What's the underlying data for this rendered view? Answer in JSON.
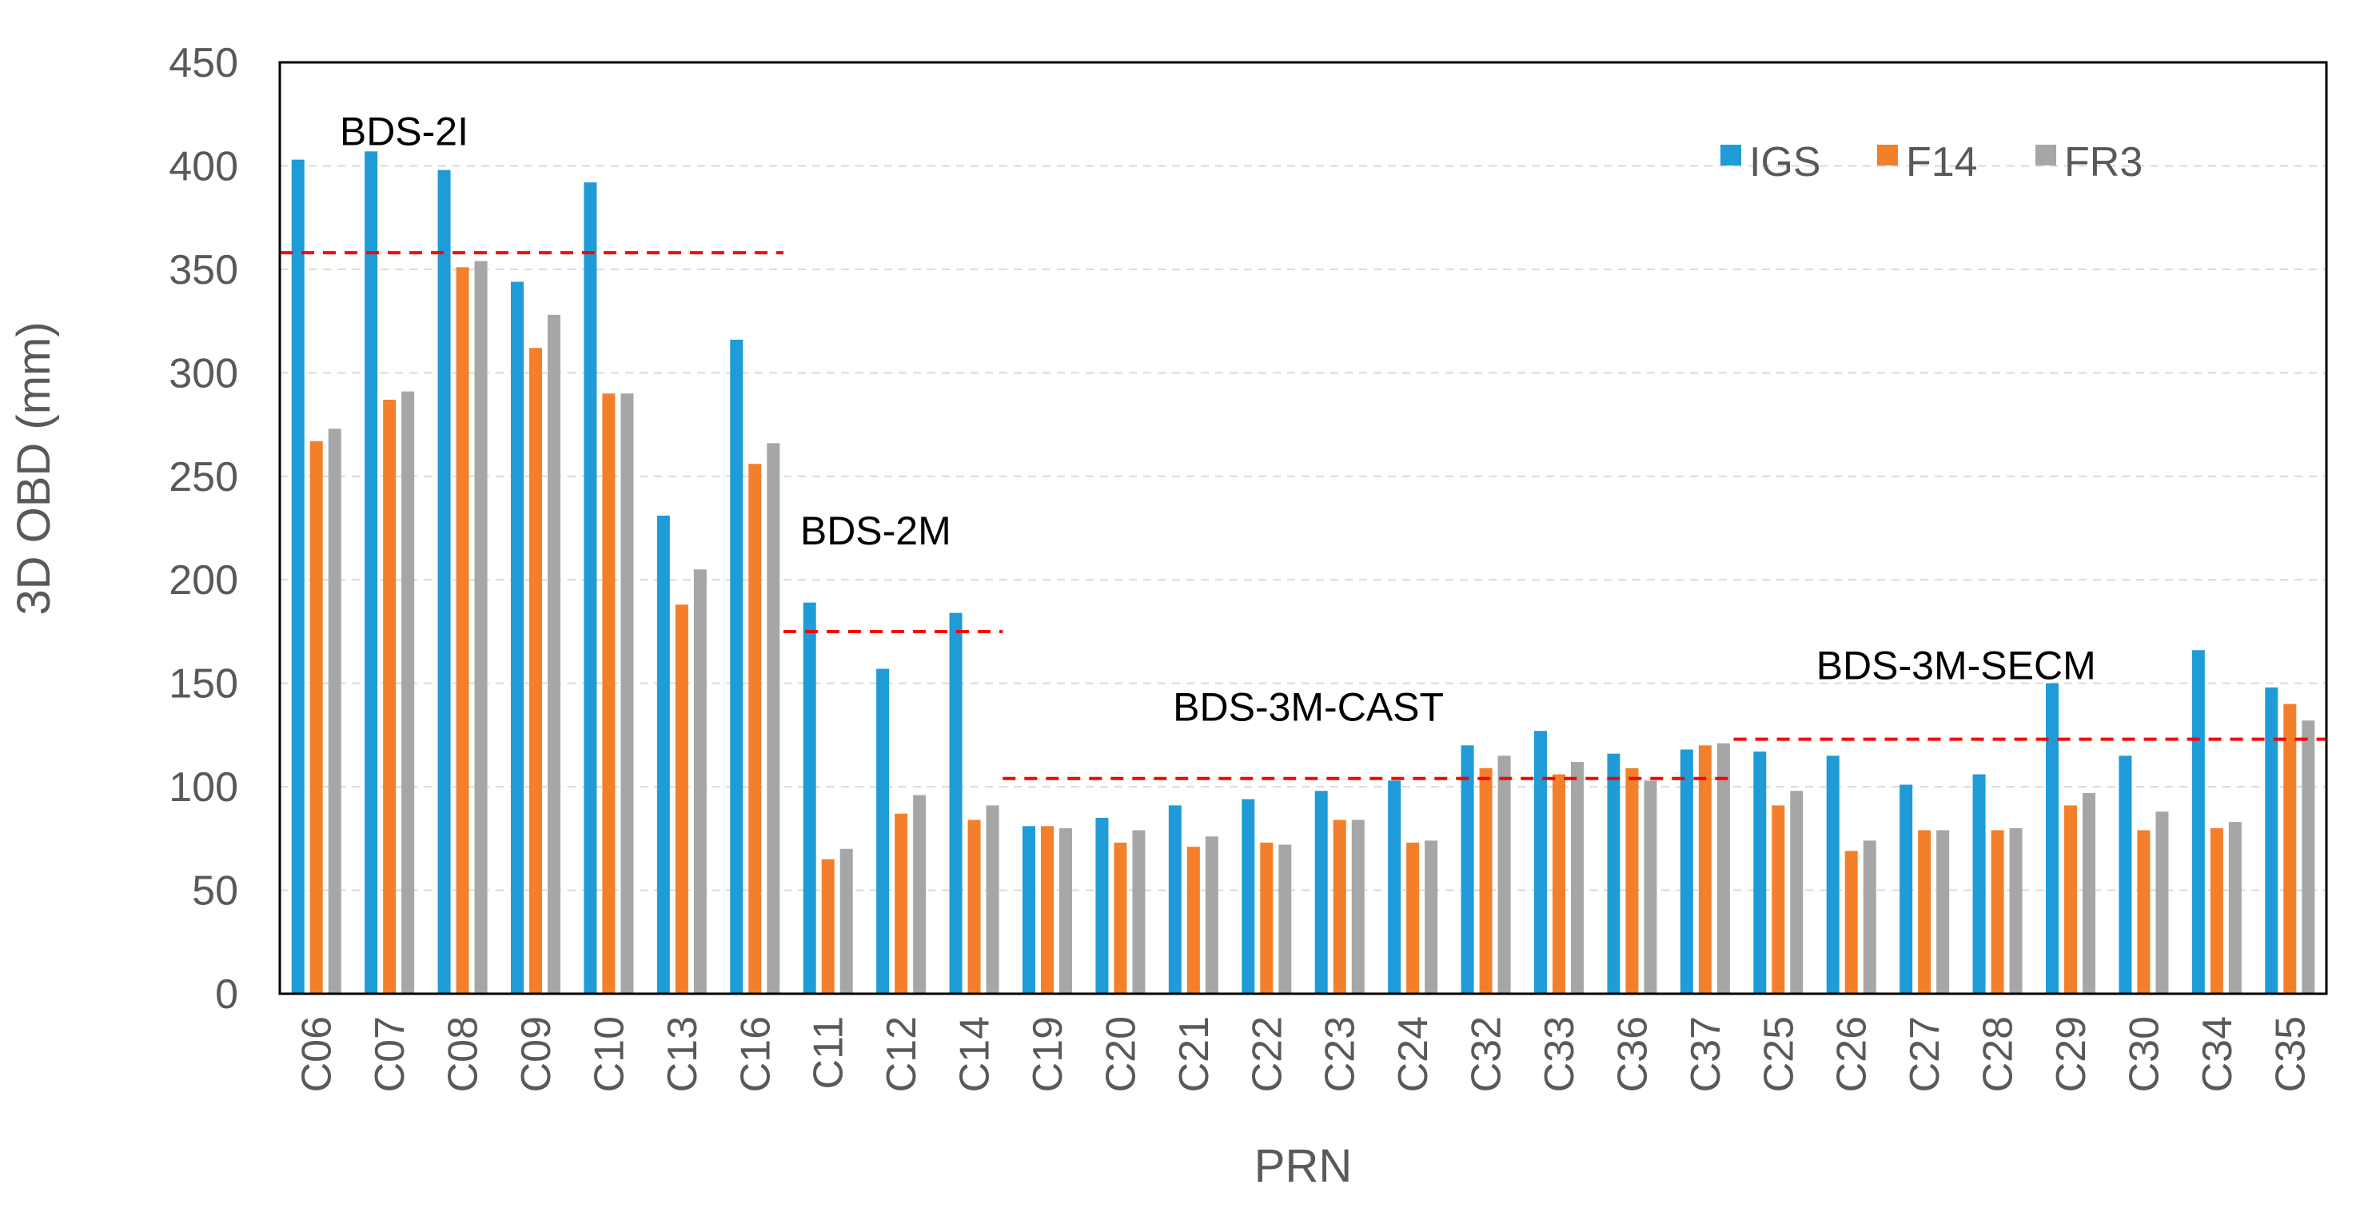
{
  "chart_data": {
    "type": "bar",
    "title": "",
    "xlabel": "PRN",
    "ylabel": "3D OBD (mm)",
    "ylim": [
      0,
      450
    ],
    "yticks": [
      0,
      50,
      100,
      150,
      200,
      250,
      300,
      350,
      400,
      450
    ],
    "grid": "horizontal dashed",
    "legend": "top-right",
    "categories": [
      "C06",
      "C07",
      "C08",
      "C09",
      "C10",
      "C13",
      "C16",
      "C11",
      "C12",
      "C14",
      "C19",
      "C20",
      "C21",
      "C22",
      "C23",
      "C24",
      "C32",
      "C33",
      "C36",
      "C37",
      "C25",
      "C26",
      "C27",
      "C28",
      "C29",
      "C30",
      "C34",
      "C35"
    ],
    "series": [
      {
        "name": "IGS",
        "color": "#1F9BD7",
        "values": [
          403,
          407,
          398,
          344,
          392,
          231,
          316,
          189,
          157,
          184,
          81,
          85,
          91,
          94,
          98,
          103,
          120,
          127,
          116,
          118,
          117,
          115,
          101,
          106,
          150,
          115,
          166,
          148
        ]
      },
      {
        "name": "F14",
        "color": "#F47F2A",
        "values": [
          267,
          287,
          351,
          312,
          290,
          188,
          256,
          65,
          87,
          84,
          81,
          73,
          71,
          73,
          84,
          73,
          109,
          106,
          109,
          120,
          91,
          69,
          79,
          79,
          91,
          79,
          80,
          140
        ]
      },
      {
        "name": "FR3",
        "color": "#A6A6A6",
        "values": [
          273,
          291,
          354,
          328,
          290,
          205,
          266,
          70,
          96,
          91,
          80,
          79,
          76,
          72,
          84,
          74,
          115,
          112,
          103,
          121,
          98,
          74,
          79,
          80,
          97,
          88,
          83,
          132
        ]
      }
    ],
    "groups": [
      {
        "label": "BDS-2I",
        "mean": 358,
        "from": "C06",
        "to": "C16"
      },
      {
        "label": "BDS-2M",
        "mean": 175,
        "from": "C11",
        "to": "C14"
      },
      {
        "label": "BDS-3M-CAST",
        "mean": 104,
        "from": "C19",
        "to": "C37"
      },
      {
        "label": "BDS-3M-SECM",
        "mean": 123,
        "from": "C25",
        "to": "C35"
      }
    ]
  }
}
